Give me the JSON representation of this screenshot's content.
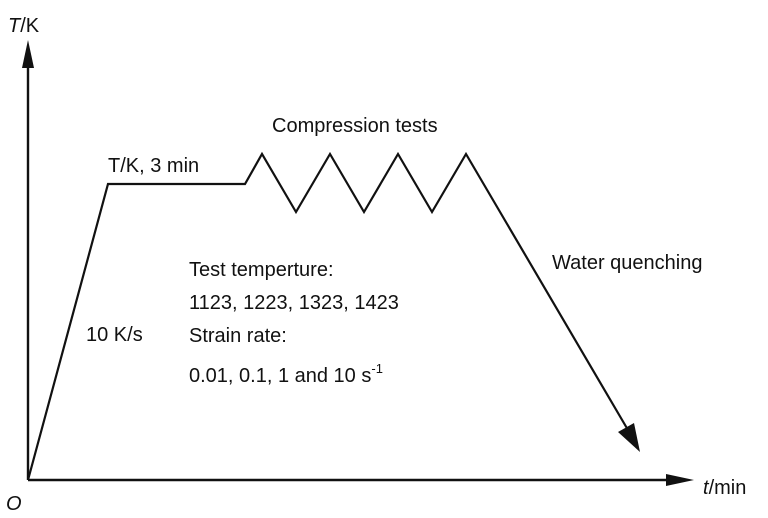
{
  "axes": {
    "y_label_var": "T",
    "y_label_unit": "/K",
    "x_label_var": "t",
    "x_label_unit": "/min",
    "origin": "O"
  },
  "annotations": {
    "hold": "T/K, 3 min",
    "compression": "Compression tests",
    "quench": "Water quenching",
    "heating_rate": "10 K/s",
    "test_temp_heading": "Test temperture:",
    "test_temp_values": "1123, 1223, 1323, 1423",
    "strain_rate_heading": "Strain rate:",
    "strain_rate_values": "0.01, 0.1, 1 and 10 s",
    "strain_rate_exponent": "-1"
  }
}
